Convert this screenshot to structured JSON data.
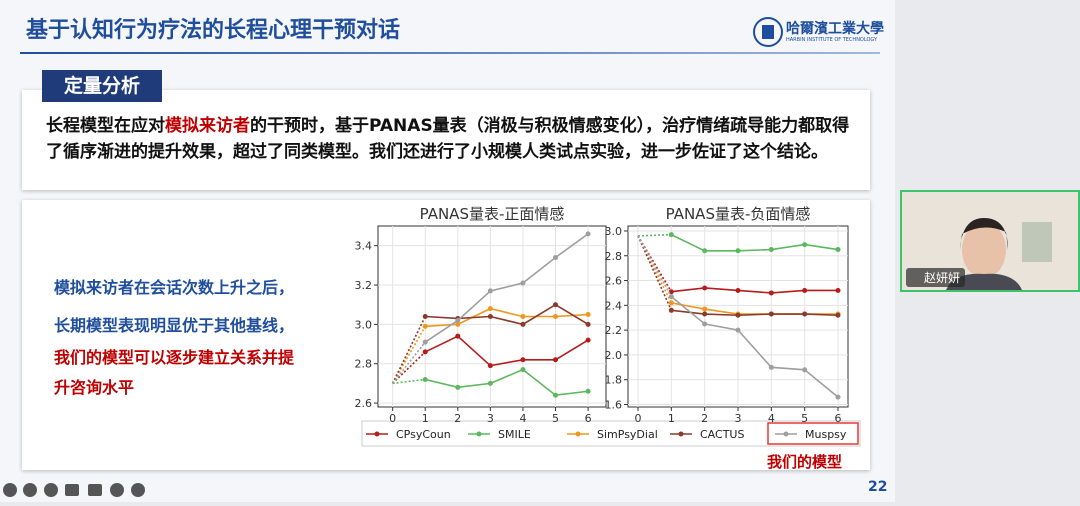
{
  "slide": {
    "title": "基于认知行为疗法的长程心理干预对话",
    "logo_name": "哈爾濱工業大學",
    "logo_en": "HARBIN INSTITUTE OF TECHNOLOGY",
    "section": "定量分析",
    "paragraph": [
      "长程模型在应对",
      "模拟来访者",
      "的干预时，基于PANAS量表（消极与积极情感变化），治疗情绪疏导能力都取得了循序渐进的提升效果，超过了同类模型。我们还进行了小规模人类试点实验，进一步佐证了这个结论。"
    ],
    "side_text": [
      "模拟来访者在会话次数上升之后，",
      "长期模型表现明显优于其他基线，",
      "我们的模型可以逐步建立关系并提",
      "升咨询水平"
    ],
    "model_note": "我们的模型",
    "page_number": "22"
  },
  "video": {
    "participant": "赵妍妍"
  },
  "chart_data": [
    {
      "type": "line",
      "title": "PANAS量表-正面情感",
      "x": [
        0,
        1,
        2,
        3,
        4,
        5,
        6
      ],
      "xlim": [
        -0.45,
        6.55
      ],
      "xticks": [
        0,
        1,
        2,
        3,
        4,
        5,
        6
      ],
      "ylim": [
        2.58,
        3.5
      ],
      "yticks": [
        {
          "value": 2.6,
          "label": "2.6"
        },
        {
          "value": 2.8,
          "label": "2.8"
        },
        {
          "value": 3.0,
          "label": "3.0"
        },
        {
          "value": 3.2,
          "label": "3.2"
        },
        {
          "value": 3.4,
          "label": "3.4"
        }
      ],
      "grid": true,
      "series": [
        {
          "name": "CPsyCoun",
          "color": "#b71c1c",
          "values": [
            2.7,
            2.86,
            2.94,
            2.79,
            2.82,
            2.82,
            2.92
          ]
        },
        {
          "name": "SMILE",
          "color": "#5cb85c",
          "values": [
            2.7,
            2.72,
            2.68,
            2.7,
            2.77,
            2.64,
            2.66
          ]
        },
        {
          "name": "SimPsyDial",
          "color": "#f0961e",
          "values": [
            2.7,
            2.99,
            3.0,
            3.08,
            3.04,
            3.04,
            3.05
          ]
        },
        {
          "name": "CACTUS",
          "color": "#8b3a2a",
          "values": [
            2.7,
            3.04,
            3.03,
            3.04,
            3.0,
            3.1,
            3.0
          ]
        },
        {
          "name": "Muspsy",
          "color": "#9e9e9e",
          "values": [
            2.7,
            2.91,
            3.02,
            3.17,
            3.21,
            3.34,
            3.46
          ]
        }
      ]
    },
    {
      "type": "line",
      "title": "PANAS量表-负面情感",
      "x": [
        0,
        1,
        2,
        3,
        4,
        5,
        6
      ],
      "xlim": [
        -0.3,
        6.3
      ],
      "xticks": [
        0,
        1,
        2,
        3,
        4,
        5,
        6
      ],
      "ylim": [
        1.58,
        3.04
      ],
      "yticks": [
        {
          "value": 1.6,
          "label": "1.6"
        },
        {
          "value": 1.8,
          "label": "1.8"
        },
        {
          "value": 2.0,
          "label": "2.0"
        },
        {
          "value": 2.2,
          "label": "2.2"
        },
        {
          "value": 2.4,
          "label": "2.4"
        },
        {
          "value": 2.6,
          "label": "2.6"
        },
        {
          "value": 2.8,
          "label": "2.8"
        },
        {
          "value": 3.0,
          "label": "3.0"
        }
      ],
      "grid": true,
      "series": [
        {
          "name": "CPsyCoun",
          "color": "#b71c1c",
          "values": [
            2.96,
            2.51,
            2.54,
            2.52,
            2.5,
            2.52,
            2.52
          ]
        },
        {
          "name": "SMILE",
          "color": "#5cb85c",
          "values": [
            2.96,
            2.97,
            2.84,
            2.84,
            2.85,
            2.89,
            2.85
          ]
        },
        {
          "name": "SimPsyDial",
          "color": "#f0961e",
          "values": [
            2.96,
            2.42,
            2.37,
            2.33,
            2.33,
            2.33,
            2.33
          ]
        },
        {
          "name": "CACTUS",
          "color": "#8b3a2a",
          "values": [
            2.96,
            2.36,
            2.33,
            2.32,
            2.33,
            2.33,
            2.32
          ]
        },
        {
          "name": "Muspsy",
          "color": "#9e9e9e",
          "values": [
            2.96,
            2.47,
            2.25,
            2.2,
            1.9,
            1.88,
            1.66
          ]
        }
      ]
    }
  ]
}
